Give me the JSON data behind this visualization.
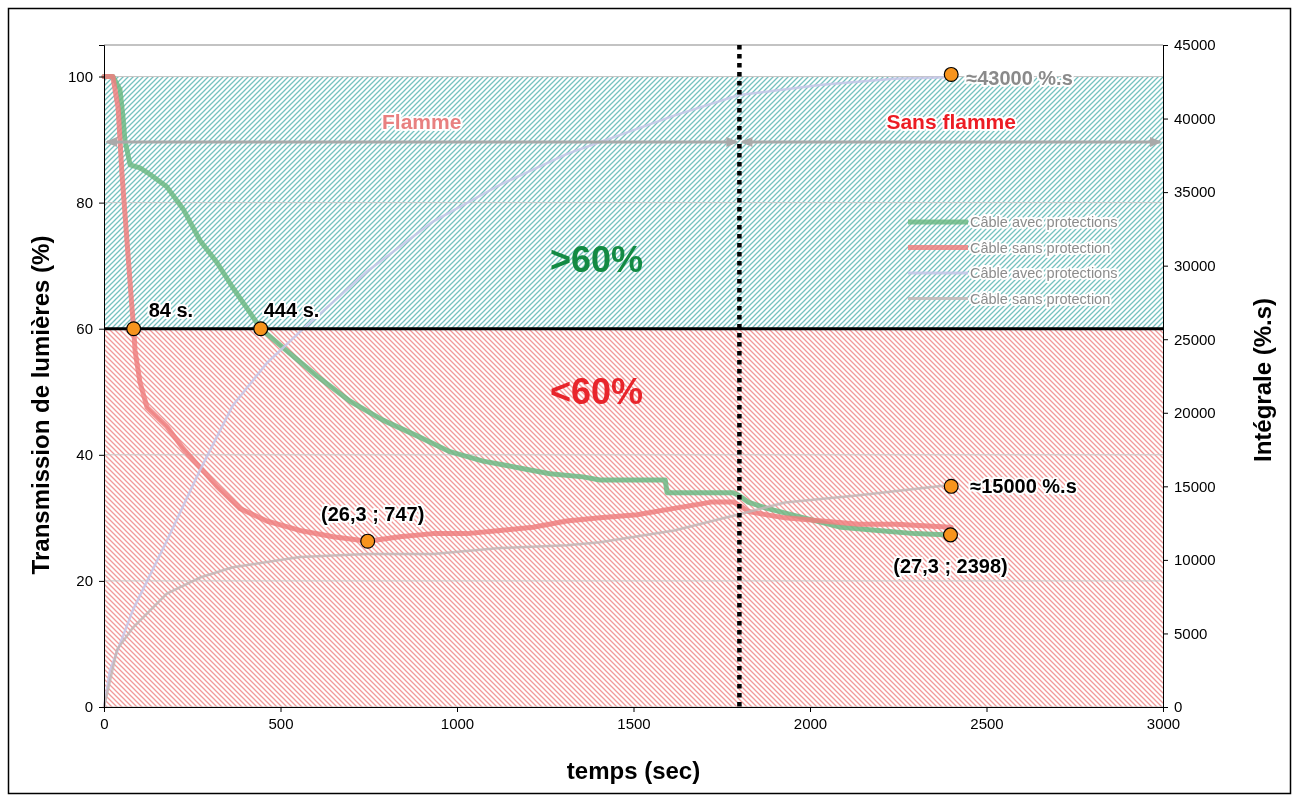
{
  "chart_data": {
    "type": "line",
    "xlabel": "temps (sec)",
    "ylabel": "Transmission de lumières (%)",
    "y2label": "Intégrale (%.s)",
    "xlim": [
      0,
      3000
    ],
    "xticks": [
      0,
      500,
      1000,
      1500,
      2000,
      2500,
      3000
    ],
    "ylim": [
      0,
      105
    ],
    "yticks": [
      0,
      20,
      40,
      60,
      80,
      100
    ],
    "y2lim": [
      0,
      45000
    ],
    "y2ticks": [
      0,
      5000,
      10000,
      15000,
      20000,
      25000,
      30000,
      35000,
      40000,
      45000
    ],
    "grid": "y",
    "legend": "right",
    "series": [
      {
        "name": "Câble avec protections",
        "color": "#6cb984",
        "x": [
          0,
          25,
          45,
          54,
          59,
          74,
          102,
          130,
          178,
          224,
          272,
          320,
          365,
          414,
          444,
          507,
          603,
          697,
          790,
          887,
          980,
          1074,
          1170,
          1263,
          1357,
          1405,
          1552,
          1590,
          1595,
          1720,
          1782,
          1800,
          1825,
          1878,
          1983,
          2088,
          2193,
          2297,
          2398
        ],
        "values": [
          100,
          100,
          98,
          93.5,
          90,
          86,
          85.5,
          84.5,
          82.5,
          79,
          74,
          70.5,
          66.5,
          62.5,
          60,
          57,
          52.5,
          48.5,
          45.5,
          43,
          40.5,
          39,
          38,
          37,
          36.5,
          36,
          36,
          36,
          34,
          34,
          34,
          33.5,
          32.5,
          31.5,
          30,
          28.5,
          28,
          27.5,
          27.3
        ]
      },
      {
        "name": "Câble sans protection",
        "color": "#ef7f7f",
        "x": [
          0,
          25,
          40,
          51,
          65,
          79,
          84,
          88,
          102,
          122,
          178,
          224,
          272,
          320,
          385,
          461,
          555,
          649,
          747,
          838,
          932,
          1028,
          1122,
          1215,
          1311,
          1405,
          1510,
          1615,
          1720,
          1782,
          1800,
          1825,
          1929,
          2034,
          2139,
          2244,
          2400
        ],
        "values": [
          100,
          100,
          95,
          84.5,
          74,
          63.5,
          60,
          56.5,
          51.5,
          47.5,
          44.5,
          41,
          38,
          35,
          31.5,
          29.5,
          28,
          27,
          26.3,
          27,
          27.5,
          27.5,
          28,
          28.5,
          29.5,
          30,
          30.5,
          31.5,
          32.5,
          32.5,
          32,
          31,
          30,
          29.5,
          29,
          29,
          28.5
        ]
      },
      {
        "name": "Câble avec protections",
        "color": "#c6c6e8",
        "axis": "y2",
        "x": [
          0,
          17,
          82,
          178,
          272,
          365,
          462,
          555,
          745,
          932,
          1122,
          1312,
          1405,
          1615,
          1799,
          2034,
          2238,
          2397
        ],
        "values": [
          0,
          2500,
          6600,
          11300,
          16100,
          20500,
          23400,
          25500,
          29600,
          33000,
          35500,
          37600,
          38400,
          40200,
          41600,
          42300,
          42700,
          42800
        ]
      },
      {
        "name": "Câble sans protection",
        "color": "#c2b6b6",
        "axis": "y2",
        "x": [
          0,
          37,
          82,
          178,
          272,
          365,
          555,
          745,
          932,
          1122,
          1312,
          1405,
          1615,
          1799,
          1929,
          2139,
          2402
        ],
        "values": [
          0,
          3900,
          5400,
          7700,
          8800,
          9500,
          10200,
          10400,
          10400,
          10800,
          11000,
          11200,
          12000,
          13100,
          13900,
          14400,
          15100
        ]
      },
      {
        "type": "scatter",
        "color": "#f7941d",
        "marker": "circle",
        "x": [
          84,
          444,
          747,
          2398
        ],
        "values": [
          60,
          60,
          26.3,
          27.3
        ],
        "value_labels": [
          null,
          null,
          "(26,3 ; 747)",
          "(27,3 ; 2398)"
        ]
      },
      {
        "type": "scatter",
        "color": "#f7941d",
        "marker": "circle",
        "axis": "y2",
        "x": [
          2400,
          2400
        ],
        "values": [
          43000,
          15000
        ],
        "value_labels": [
          "≈43000 %.s",
          "≈15000 %.s"
        ]
      }
    ],
    "bands": [
      {
        "axis": "y",
        "from": 60,
        "to": 100,
        "label": ">60%",
        "color": "#76c2bf"
      },
      {
        "axis": "y",
        "from": 0,
        "to": 60,
        "label": "<60%",
        "color": "#f29a9a"
      }
    ],
    "ref_lines": [
      {
        "axis": "y",
        "value": 60,
        "color": "#000000",
        "line_style": "solid"
      },
      {
        "axis": "x",
        "value": 1800,
        "color": "#000000",
        "line_style": "dotted"
      }
    ],
    "annotations": [
      "Flamme",
      "Sans flamme",
      {
        "text": "84 s.",
        "x": 84,
        "y": 60
      },
      {
        "text": "444 s.",
        "x": 444,
        "y": 60
      }
    ]
  }
}
